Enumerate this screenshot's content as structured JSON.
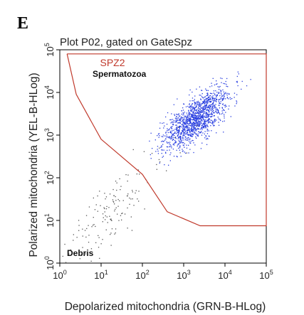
{
  "panel_letter": "E",
  "chart_data": {
    "type": "scatter",
    "title": "Plot P02, gated on GateSpz",
    "xlabel": "Depolarized mitochondria (GRN-B-HLog)",
    "ylabel": "Polarized mitochondria (YEL-B-HLog)",
    "x_scale": "log",
    "y_scale": "log",
    "xlim": [
      1,
      100000
    ],
    "ylim": [
      1,
      100000
    ],
    "x_ticks": [
      {
        "base": "10",
        "exp": "0",
        "value": 1
      },
      {
        "base": "10",
        "exp": "1",
        "value": 10
      },
      {
        "base": "10",
        "exp": "2",
        "value": 100
      },
      {
        "base": "10",
        "exp": "3",
        "value": 1000
      },
      {
        "base": "10",
        "exp": "4",
        "value": 10000
      },
      {
        "base": "10",
        "exp": "5",
        "value": 100000
      }
    ],
    "y_ticks": [
      {
        "base": "10",
        "exp": "0",
        "value": 1
      },
      {
        "base": "10",
        "exp": "1",
        "value": 10
      },
      {
        "base": "10",
        "exp": "2",
        "value": 100
      },
      {
        "base": "10",
        "exp": "3",
        "value": 1000
      },
      {
        "base": "10",
        "exp": "4",
        "value": 10000
      },
      {
        "base": "10",
        "exp": "5",
        "value": 100000
      }
    ],
    "gate": {
      "name": "SPZ2",
      "color": "#c0392b",
      "vertices": [
        [
          1.5,
          80000
        ],
        [
          100000,
          80000
        ],
        [
          100000,
          7.5
        ],
        [
          2500,
          7.5
        ],
        [
          400,
          16
        ],
        [
          100,
          120
        ],
        [
          10,
          800
        ],
        [
          2.5,
          9000
        ],
        [
          1.5,
          80000
        ]
      ]
    },
    "labels": {
      "gate_population": "Spermatozoa",
      "debris": "Debris"
    },
    "populations": [
      {
        "id": "spermatozoa",
        "color": "#2a3fe0",
        "center": [
          2000,
          2500
        ],
        "spread": [
          0.42,
          0.38
        ],
        "count": 1400
      },
      {
        "id": "debris",
        "color": "#555555",
        "center": [
          15,
          15
        ],
        "spread": [
          0.7,
          0.55
        ],
        "count": 160
      }
    ]
  }
}
